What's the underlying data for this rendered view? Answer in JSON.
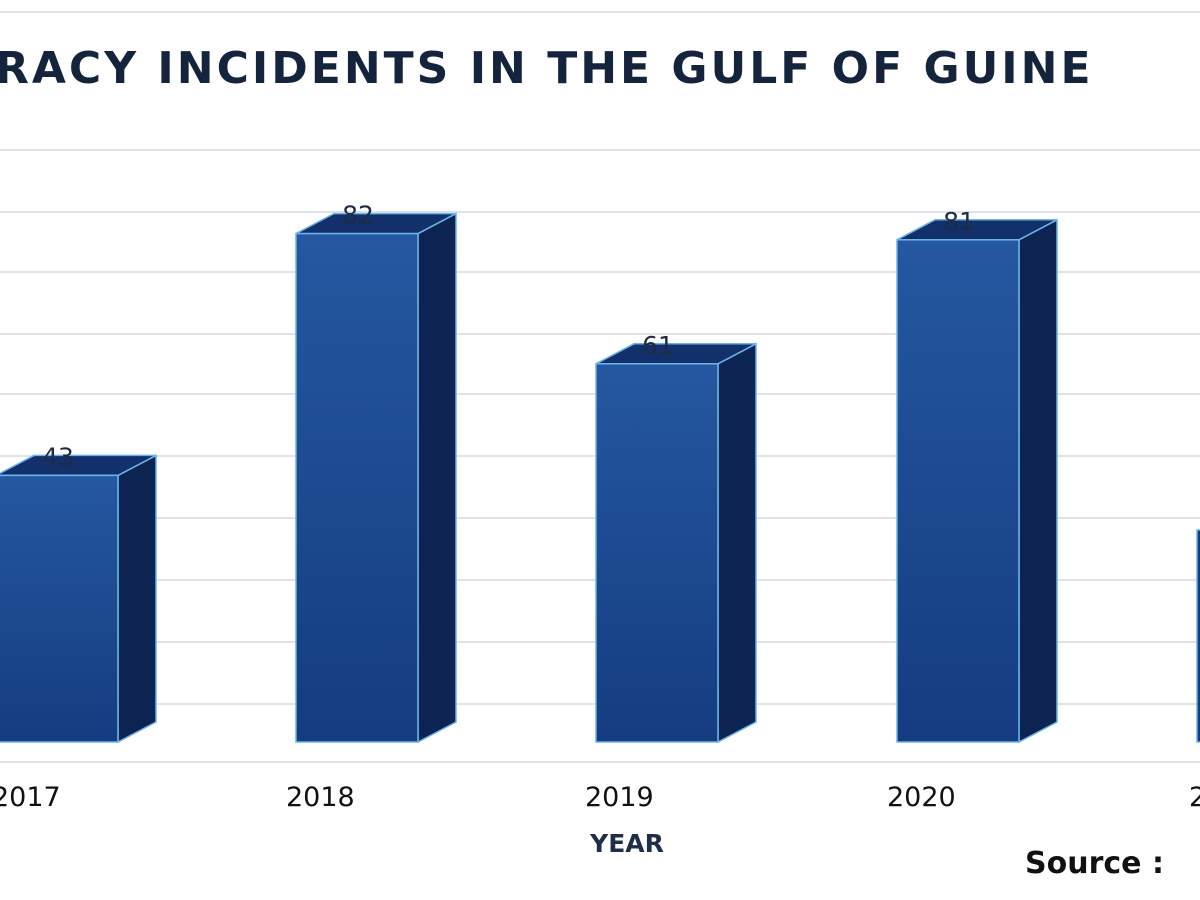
{
  "chart_data": {
    "type": "bar",
    "title": "RACY INCIDENTS IN THE GULF OF GUINE",
    "xlabel": "YEAR",
    "ylabel": "",
    "source_label": "Source :",
    "categories": [
      "2017",
      "2018",
      "2019",
      "2020",
      "2"
    ],
    "values": [
      43,
      82,
      61,
      81,
      null
    ],
    "data_labels": [
      "43",
      "82",
      "61",
      "81",
      ""
    ],
    "ylim": [
      0,
      100
    ],
    "grid": true,
    "legend": "none",
    "colors": {
      "bar_front_top": "#2458a0",
      "bar_front_bottom": "#153c80",
      "bar_side": "#0d2352",
      "bar_top": "#12306a",
      "gridline": "#dfe4ea",
      "edge": "#6cb4e8"
    }
  }
}
